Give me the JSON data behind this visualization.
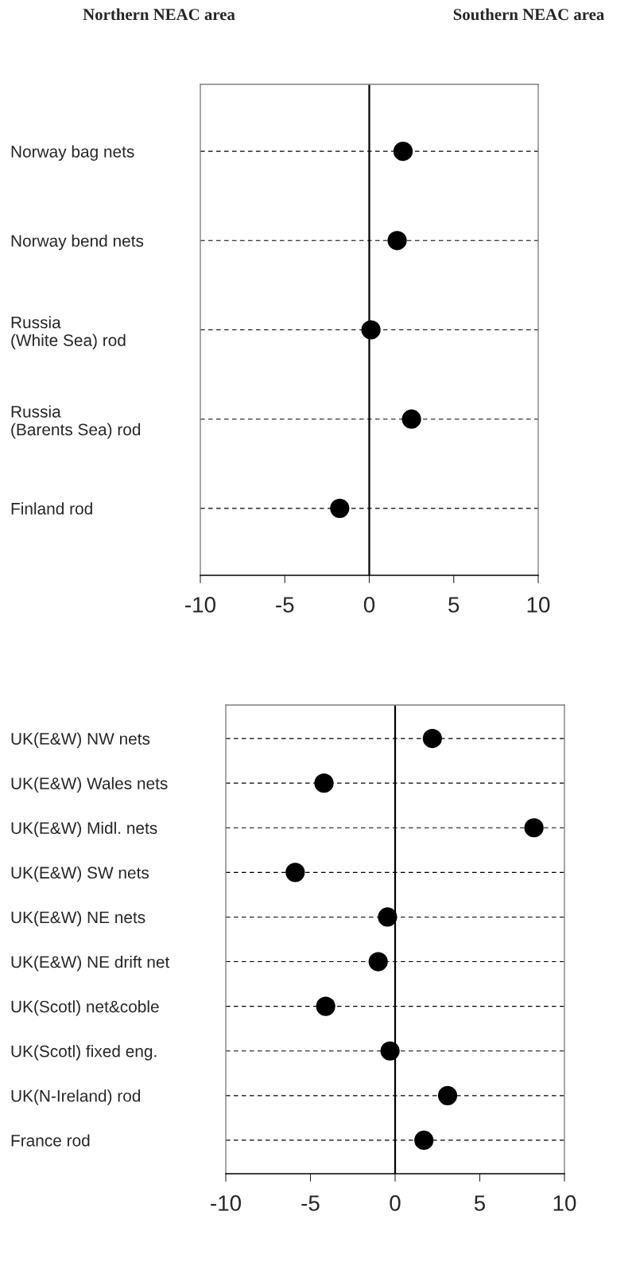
{
  "chart_data": [
    {
      "type": "scatter",
      "annotations": [
        "Northern NEAC area",
        "Southern NEAC area"
      ],
      "categories": [
        "Norway bag nets",
        "Norway bend nets",
        "Russia\n(White Sea) rod",
        "Russia\n(Barents Sea) rod",
        "Finland rod"
      ],
      "orientation": "horizontal",
      "values": [
        2.0,
        1.65,
        0.1,
        2.5,
        -1.75
      ],
      "color": "#000000",
      "marker": "circle",
      "xlim": [
        -10,
        10
      ],
      "xticks": [
        -10,
        -5,
        0,
        5,
        10
      ],
      "grid": "y",
      "ref_lines": [
        {
          "axis": "x",
          "value": 0
        }
      ]
    },
    {
      "type": "scatter",
      "categories": [
        "UK(E&W) NW nets",
        "UK(E&W) Wales nets",
        "UK(E&W) Midl. nets",
        "UK(E&W) SW nets",
        "UK(E&W) NE nets",
        "UK(E&W) NE drift net",
        "UK(Scotl) net&coble",
        "UK(Scotl) fixed eng.",
        "UK(N-Ireland) rod",
        "France rod"
      ],
      "orientation": "horizontal",
      "values": [
        2.2,
        -4.2,
        8.2,
        -5.9,
        -0.45,
        -1.0,
        -4.1,
        -0.3,
        3.1,
        1.7
      ],
      "color": "#000000",
      "marker": "circle",
      "xlim": [
        -10,
        10
      ],
      "xticks": [
        -10,
        -5,
        0,
        5,
        10
      ],
      "grid": "y",
      "ref_lines": [
        {
          "axis": "x",
          "value": 0
        }
      ]
    }
  ]
}
